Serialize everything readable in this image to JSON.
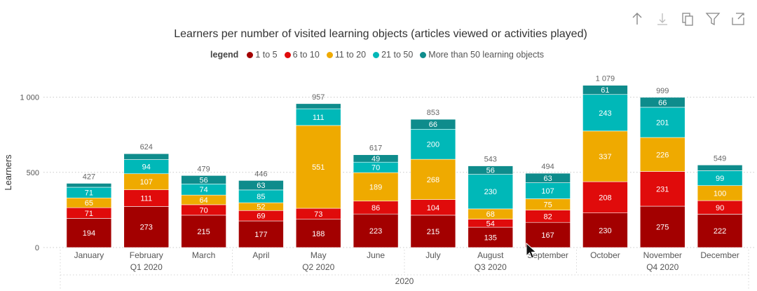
{
  "toolbar": {
    "icons": [
      "drill-up-icon",
      "drill-down-icon",
      "copy-icon",
      "filter-icon",
      "focus-mode-icon"
    ]
  },
  "colors": {
    "s1": "#A30000",
    "s2": "#E00B0B",
    "s3": "#EFAA00",
    "s4": "#00B8B8",
    "s5": "#0E8C8C",
    "grid": "#c8c8c8",
    "axis_text": "#555555"
  },
  "chart_data": {
    "type": "bar",
    "stacked": true,
    "title": "Learners per number of visited learning objects (articles viewed or activities played)",
    "legend_title": "legend",
    "legend_position": "top-center",
    "ylabel": "Learners",
    "ylim": [
      0,
      1079
    ],
    "yticks": [
      0,
      500,
      1000
    ],
    "ytick_labels": [
      "0",
      "500",
      "1 000"
    ],
    "grid": true,
    "categories": [
      "January",
      "February",
      "March",
      "April",
      "May",
      "June",
      "July",
      "August",
      "September",
      "October",
      "November",
      "December"
    ],
    "quarters": [
      "Q1 2020",
      "Q2 2020",
      "Q3 2020",
      "Q4 2020"
    ],
    "year": "2020",
    "series": [
      {
        "name": "1 to 5",
        "values": [
          194,
          273,
          215,
          177,
          188,
          223,
          215,
          135,
          167,
          230,
          275,
          222
        ],
        "value_labels": [
          "194",
          "273",
          "215",
          "177",
          "188",
          "223",
          "215",
          "135",
          "167",
          "230",
          "275",
          "222"
        ]
      },
      {
        "name": "6 to 10",
        "values": [
          71,
          111,
          70,
          69,
          73,
          86,
          104,
          54,
          82,
          208,
          231,
          90
        ],
        "value_labels": [
          "71",
          "111",
          "70",
          "69",
          "73",
          "86",
          "104",
          "54",
          "82",
          "208",
          "231",
          "90"
        ]
      },
      {
        "name": "11 to 20",
        "values": [
          65,
          107,
          64,
          52,
          551,
          189,
          268,
          68,
          75,
          337,
          226,
          100
        ],
        "value_labels": [
          "65",
          "107",
          "64",
          "52",
          "551",
          "189",
          "268",
          "68",
          "75",
          "337",
          "226",
          "100"
        ]
      },
      {
        "name": "21 to 50",
        "values": [
          71,
          94,
          74,
          85,
          111,
          70,
          200,
          230,
          107,
          243,
          201,
          99
        ],
        "value_labels": [
          "71",
          "94",
          "74",
          "85",
          "111",
          "70",
          "200",
          "230",
          "107",
          "243",
          "201",
          "99"
        ]
      },
      {
        "name": "More than 50 learning objects",
        "values": [
          26,
          39,
          56,
          63,
          34,
          49,
          66,
          56,
          63,
          61,
          66,
          38
        ],
        "value_labels": [
          "",
          "",
          "56",
          "63",
          "",
          "49",
          "66",
          "56",
          "63",
          "61",
          "66",
          ""
        ]
      }
    ],
    "totals": [
      427,
      624,
      479,
      446,
      957,
      617,
      853,
      543,
      494,
      1079,
      999,
      549
    ],
    "total_labels": [
      "427",
      "624",
      "479",
      "446",
      "957",
      "617",
      "853",
      "543",
      "494",
      "1 079",
      "999",
      "549"
    ]
  }
}
